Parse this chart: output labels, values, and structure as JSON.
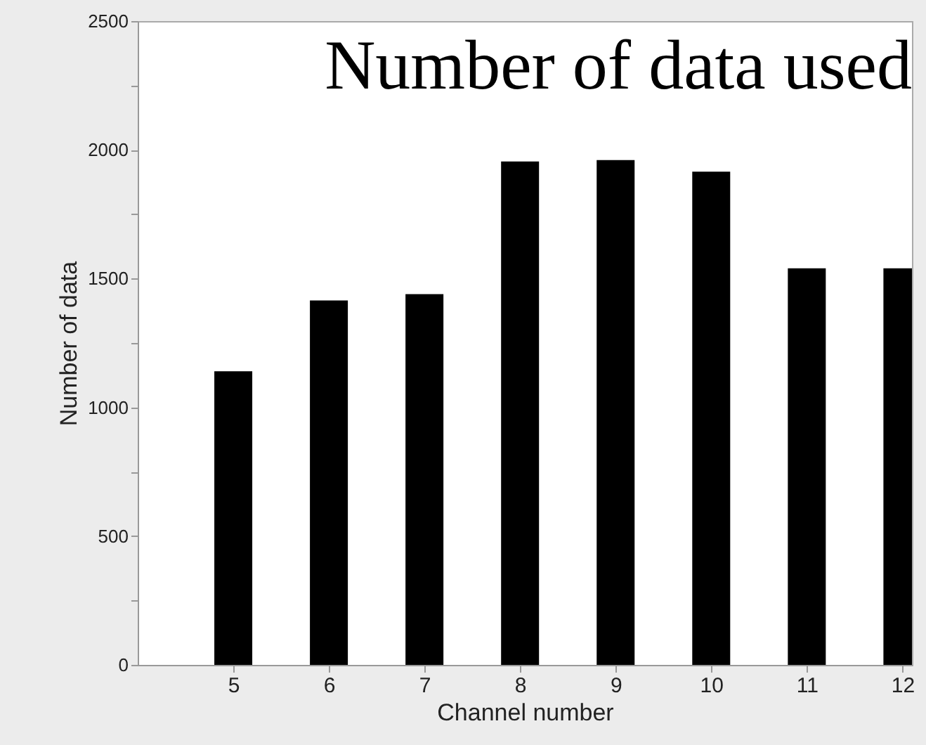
{
  "chart_data": {
    "type": "bar",
    "title": "Number of data used",
    "xlabel": "Channel number",
    "ylabel": "Number of data",
    "x": [
      5,
      6,
      7,
      8,
      9,
      10,
      11,
      12
    ],
    "values": [
      1140,
      1415,
      1440,
      1955,
      1960,
      1915,
      1540,
      1540
    ],
    "color": "#000000",
    "xlim": [
      4,
      12.1
    ],
    "xticks": [
      5,
      6,
      7,
      8,
      9,
      10,
      11,
      12
    ],
    "ylim": [
      0,
      2500
    ],
    "yticks": [
      0,
      {
        "value": 250,
        "label": null
      },
      500,
      {
        "value": 750,
        "label": null
      },
      1000,
      {
        "value": 1250,
        "label": null
      },
      1500,
      {
        "value": 1750,
        "label": null
      },
      2000,
      {
        "value": 2250,
        "label": null
      },
      2500
    ],
    "grid": false
  }
}
